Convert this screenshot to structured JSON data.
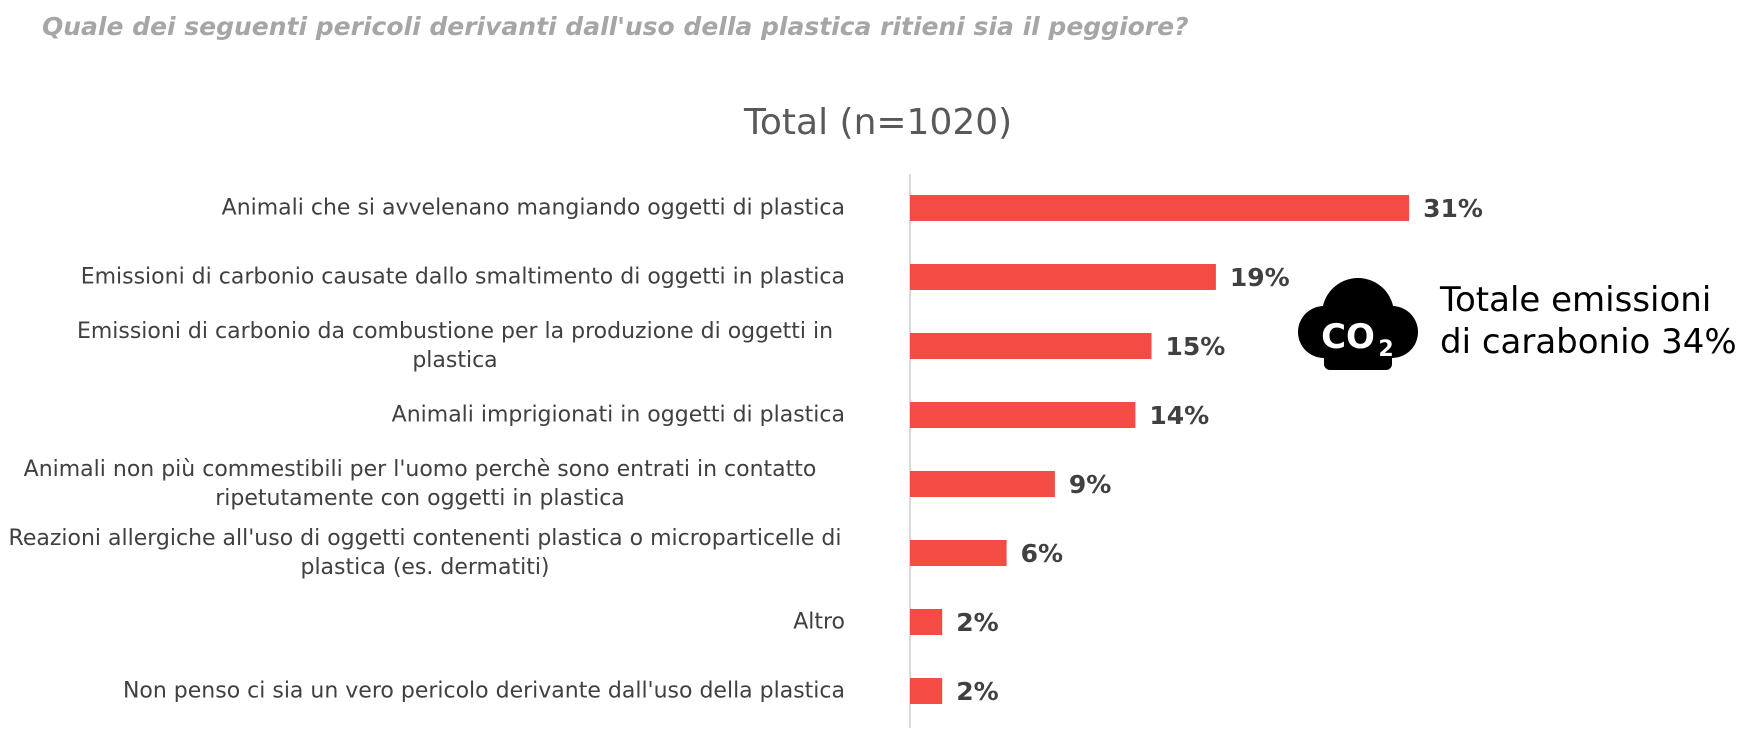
{
  "question": "Quale dei seguenti pericoli derivanti dall'uso della plastica ritieni sia il peggiore?",
  "co2_icon": "co2-cloud-icon",
  "callout": {
    "line1": "Totale emissioni",
    "line2": "di carabonio 34%"
  },
  "chart_data": {
    "type": "bar",
    "orientation": "horizontal",
    "title": "Total (n=1020)",
    "categories": [
      "Animali che si avvelenano mangiando oggetti di plastica",
      "Emissioni di carbonio causate dallo smaltimento di oggetti in plastica",
      "Emissioni di carbonio da combustione per la produzione di oggetti in plastica",
      "Animali imprigionati in oggetti di plastica",
      "Animali non più commestibili per l'uomo perchè sono entrati in contatto ripetutamente con oggetti in plastica",
      "Reazioni allergiche all'uso di oggetti contenenti plastica o microparticelle di plastica (es. dermatiti)",
      "Altro",
      "Non penso ci sia un vero pericolo derivante dall'uso della plastica"
    ],
    "values": [
      31,
      19,
      15,
      14,
      9,
      6,
      2,
      2
    ],
    "value_labels": [
      "31%",
      "19%",
      "15%",
      "14%",
      "9%",
      "6%",
      "2%",
      "2%"
    ],
    "bar_color": "#f44b45",
    "xlim": [
      0,
      40
    ],
    "grid": false
  }
}
